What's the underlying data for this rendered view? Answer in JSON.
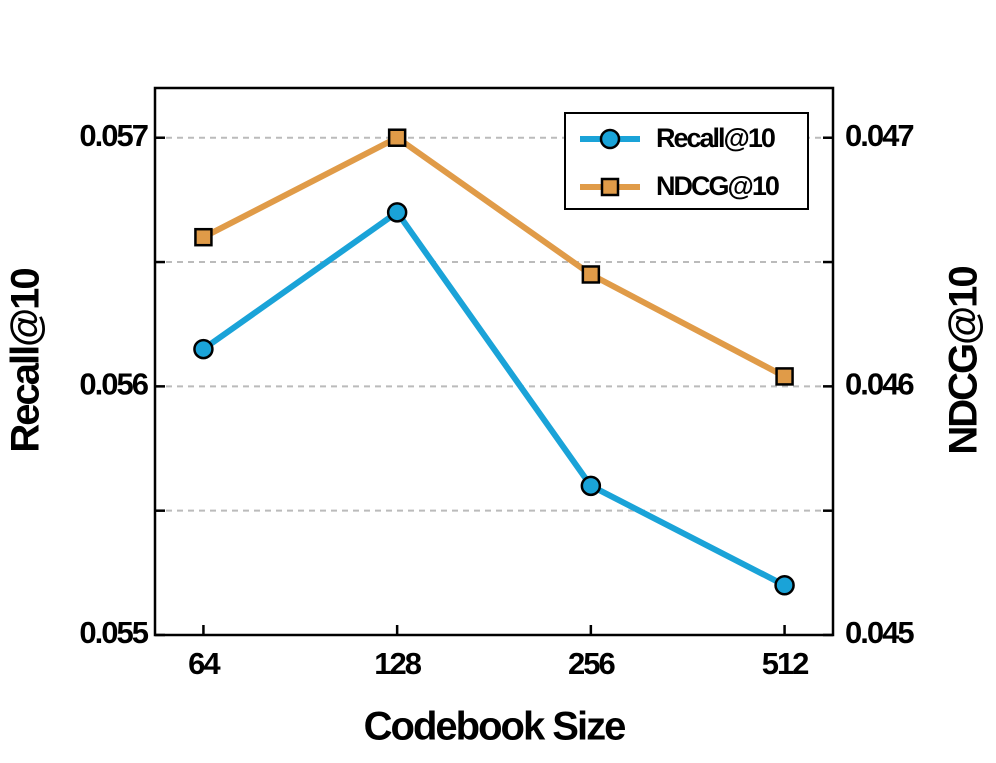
{
  "chart_data": {
    "type": "line",
    "x_label": "Codebook Size",
    "y_label": "Recall@10",
    "y2_label": "NDCG@10",
    "categories": [
      "64",
      "128",
      "256",
      "512"
    ],
    "series": [
      {
        "name": "Recall@10",
        "color": "#1aa3d8",
        "marker": "circle",
        "values": [
          0.05615,
          0.0567,
          0.0556,
          0.0552
        ]
      },
      {
        "name": "NDCG@10",
        "color": "#e09b48",
        "marker": "square",
        "axis": "y2",
        "values": [
          0.0466,
          0.047,
          0.04645,
          0.04604
        ]
      }
    ],
    "ylim": [
      0.055,
      0.0572
    ],
    "yticks": [
      0.055,
      0.056,
      0.057
    ],
    "yminorticks": [
      0.0555,
      0.0565
    ],
    "y2lim": [
      0.045,
      0.0472
    ],
    "y2ticks": [
      0.045,
      0.046,
      0.047
    ],
    "y2minorticks": [
      0.0455,
      0.0465
    ],
    "grid": true,
    "legend": "upper right"
  }
}
